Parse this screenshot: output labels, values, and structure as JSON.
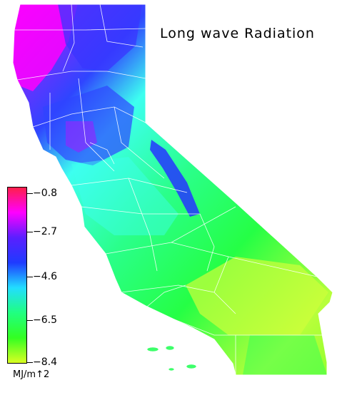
{
  "title": "Long wave Radiation",
  "legend": {
    "unit_label": "MJ/m↑2",
    "ticks": [
      "−0.8",
      "−2.7",
      "−4.6",
      "−6.5",
      "−8.4"
    ],
    "colors": [
      "#ff1f4a",
      "#ff00ff",
      "#5a1fff",
      "#1f3bff",
      "#22ddff",
      "#20ff80",
      "#33ff22",
      "#d9ff22"
    ]
  },
  "map_colors": {
    "north": "#ff00ff",
    "blue": "#2f45ff",
    "cyan": "#3dfff0",
    "green": "#29ff55",
    "yellow": "#cfff3a",
    "county_lines": "#ffffff"
  }
}
